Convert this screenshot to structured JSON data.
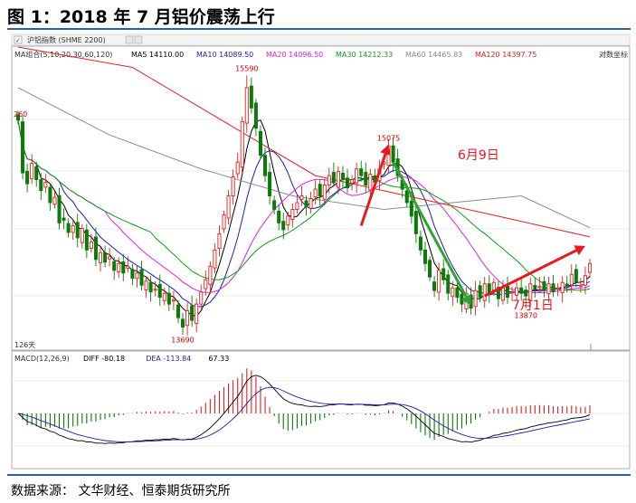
{
  "figure_title": "图 1：2018 年 7 月铝价震荡上行",
  "source_note": "数据来源： 文华财经、恒泰期货研究所",
  "toolbar": {
    "checkbox_mark": "✓",
    "instrument": "沪铝指数 (SHME 2200)",
    "log_scale": "对数坐标"
  },
  "ma_legend": {
    "label": "MA组合(5,10,20,30,60,120)",
    "items": [
      {
        "text": "MA5 14110.00",
        "color": "#000000"
      },
      {
        "text": "MA10 14089.50",
        "color": "#1d1db8"
      },
      {
        "text": "MA20 14096.50",
        "color": "#e020e0"
      },
      {
        "text": "MA30 14212.33",
        "color": "#119911"
      },
      {
        "text": "MA60 14465.83",
        "color": "#8c8c8c"
      },
      {
        "text": "MA120 14397.75",
        "color": "#e02020"
      }
    ]
  },
  "macd_legend": {
    "label": "MACD(12,26,9)",
    "items": [
      {
        "text": "DIFF -80.18",
        "color": "#000000"
      },
      {
        "text": "DEA -113.84",
        "color": "#1d1db8"
      },
      {
        "text": "67.33",
        "color": "#000000"
      }
    ]
  },
  "period_label": "126天",
  "annotations": {
    "jun9": "6月9日",
    "jul1": "7月1日"
  },
  "colors": {
    "up": "#e02020",
    "down": "#0a7a0a",
    "arrow_red": "#e8181e",
    "arrow_green": "#2fa32f",
    "grid": "#e6e6e6",
    "label_red": "#cc0000"
  },
  "chart_data": {
    "type": "candlestick",
    "bars": 126,
    "price_range_shown": [
      13600,
      15700
    ],
    "marked_prices": [
      {
        "label": "15590",
        "bar": 50,
        "price": 15590,
        "pos": "above"
      },
      {
        "label": "13690",
        "bar": 36,
        "price": 13690,
        "pos": "below"
      },
      {
        "label": "15075",
        "bar": 81,
        "price": 15075,
        "pos": "above"
      },
      {
        "label": "13870",
        "bar": 111,
        "price": 13870,
        "pos": "below"
      },
      {
        "label": "260",
        "bar": 0,
        "price": 15260,
        "pos": "left"
      }
    ],
    "closes": [
      15260,
      14870,
      14790,
      14940,
      14820,
      14740,
      14800,
      14650,
      14690,
      14500,
      14520,
      14430,
      14480,
      14390,
      14460,
      14300,
      14360,
      14230,
      14280,
      14210,
      14250,
      14150,
      14200,
      14130,
      14180,
      14090,
      14130,
      14040,
      14070,
      13990,
      14010,
      13950,
      13980,
      13900,
      13930,
      13800,
      13730,
      13850,
      13780,
      13900,
      13990,
      14080,
      14180,
      14300,
      14420,
      14560,
      14700,
      14840,
      14950,
      15250,
      15500,
      15350,
      15200,
      15000,
      14850,
      14700,
      14600,
      14500,
      14450,
      14550,
      14600,
      14650,
      14700,
      14620,
      14680,
      14750,
      14700,
      14780,
      14850,
      14800,
      14880,
      14820,
      14760,
      14820,
      14900,
      14850,
      14780,
      14860,
      14800,
      14900,
      14950,
      15070,
      14950,
      14850,
      14750,
      14650,
      14550,
      14420,
      14300,
      14200,
      14100,
      14000,
      14150,
      14080,
      13980,
      14020,
      13950,
      13900,
      13980,
      13870,
      14000,
      13950,
      14050,
      13980,
      14060,
      13940,
      14020,
      13950,
      13990,
      14020,
      13980,
      13960,
      14050,
      14010,
      14030,
      14000,
      14050,
      13990,
      14020,
      14060,
      14030,
      14120,
      14060,
      14040,
      14110,
      14200
    ],
    "ma": [
      {
        "name": "MA5",
        "color": "#000000",
        "from_bar": 4,
        "last": 14110.0
      },
      {
        "name": "MA10",
        "color": "#1d1db8",
        "from_bar": 9,
        "last": 14089.5
      },
      {
        "name": "MA20",
        "color": "#e020e0",
        "from_bar": 19,
        "last": 14096.5
      },
      {
        "name": "MA30",
        "color": "#119911",
        "from_bar": 29,
        "last": 14212.33
      },
      {
        "name": "MA60",
        "color": "#8c8c8c",
        "last": 14465.83
      },
      {
        "name": "MA120",
        "color": "#e02020",
        "last": 14397.75
      }
    ],
    "ma60_path": [
      [
        0,
        15500
      ],
      [
        20,
        15150
      ],
      [
        40,
        14900
      ],
      [
        60,
        14700
      ],
      [
        80,
        14600
      ],
      [
        95,
        14650
      ],
      [
        110,
        14700
      ],
      [
        125,
        14465
      ]
    ],
    "ma120_path": [
      [
        0,
        15800
      ],
      [
        25,
        15650
      ],
      [
        45,
        15250
      ],
      [
        65,
        14850
      ],
      [
        85,
        14700
      ],
      [
        105,
        14550
      ],
      [
        125,
        14397
      ]
    ],
    "macd": {
      "diff_last": -80.18,
      "dea_last": -113.84,
      "hist_last": 67.33,
      "range": [
        -400,
        400
      ]
    }
  }
}
